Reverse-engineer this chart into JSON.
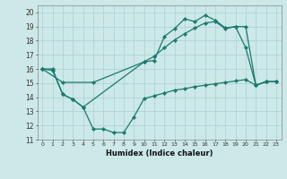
{
  "xlabel": "Humidex (Indice chaleur)",
  "xlim": [
    -0.5,
    23.5
  ],
  "ylim": [
    11,
    20.5
  ],
  "yticks": [
    11,
    12,
    13,
    14,
    15,
    16,
    17,
    18,
    19,
    20
  ],
  "xticks": [
    0,
    1,
    2,
    3,
    4,
    5,
    6,
    7,
    8,
    9,
    10,
    11,
    12,
    13,
    14,
    15,
    16,
    17,
    18,
    19,
    20,
    21,
    22,
    23
  ],
  "bg_color": "#cce8e8",
  "line_color": "#1a7a6e",
  "grid_color": "#b0d4d4",
  "line1_x": [
    0,
    1,
    2,
    3,
    4,
    10,
    11,
    12,
    13,
    14,
    15,
    16,
    17,
    18,
    19,
    20,
    21,
    22,
    23
  ],
  "line1_y": [
    16.0,
    15.9,
    14.2,
    13.85,
    13.3,
    16.5,
    16.6,
    18.3,
    18.85,
    19.55,
    19.35,
    19.8,
    19.45,
    18.9,
    19.0,
    17.5,
    14.85,
    15.1,
    15.1
  ],
  "line2_x": [
    0,
    1,
    2,
    3,
    4,
    5,
    6,
    7,
    8,
    9,
    10,
    11,
    12,
    13,
    14,
    15,
    16,
    17,
    18,
    19,
    20,
    21,
    22,
    23
  ],
  "line2_y": [
    16.0,
    16.0,
    14.2,
    13.85,
    13.3,
    11.75,
    11.75,
    11.5,
    11.5,
    12.6,
    13.9,
    14.1,
    14.3,
    14.5,
    14.6,
    14.75,
    14.85,
    14.95,
    15.05,
    15.15,
    15.25,
    14.85,
    15.1,
    15.1
  ],
  "line3_x": [
    0,
    2,
    5,
    10,
    11,
    12,
    13,
    14,
    15,
    16,
    17,
    18,
    19,
    20,
    21,
    22,
    23
  ],
  "line3_y": [
    16.0,
    15.05,
    15.05,
    16.5,
    16.9,
    17.5,
    18.05,
    18.5,
    18.9,
    19.25,
    19.35,
    18.85,
    19.0,
    19.0,
    14.85,
    15.1,
    15.1
  ]
}
